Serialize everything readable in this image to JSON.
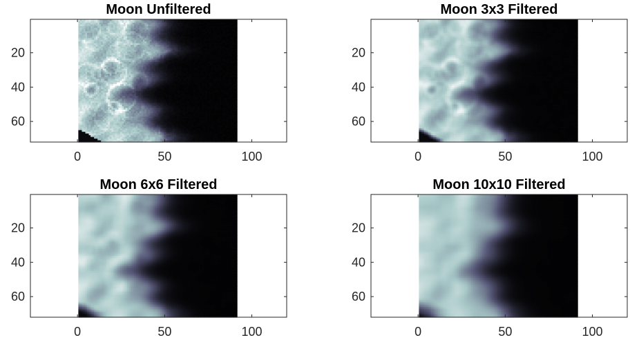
{
  "chart_data": [
    {
      "type": "heatmap",
      "title": "Moon Unfiltered",
      "filter_size": 1,
      "xlim": [
        -27,
        120
      ],
      "ylim": [
        72,
        0.5
      ],
      "xticks": [
        0,
        50,
        100
      ],
      "yticks": [
        20,
        40,
        60
      ],
      "image_x_range": [
        0.5,
        91.5
      ],
      "image_y_range": [
        0.5,
        72.5
      ],
      "colormap": "bone"
    },
    {
      "type": "heatmap",
      "title": "Moon 3x3 Filtered",
      "filter_size": 3,
      "xlim": [
        -27,
        120
      ],
      "ylim": [
        72,
        0.5
      ],
      "xticks": [
        0,
        50,
        100
      ],
      "yticks": [
        20,
        40,
        60
      ],
      "image_x_range": [
        0.5,
        91.5
      ],
      "image_y_range": [
        0.5,
        72.5
      ],
      "colormap": "bone"
    },
    {
      "type": "heatmap",
      "title": "Moon 6x6 Filtered",
      "filter_size": 6,
      "xlim": [
        -27,
        120
      ],
      "ylim": [
        72,
        0.5
      ],
      "xticks": [
        0,
        50,
        100
      ],
      "yticks": [
        20,
        40,
        60
      ],
      "image_x_range": [
        0.5,
        91.5
      ],
      "image_y_range": [
        0.5,
        72.5
      ],
      "colormap": "bone"
    },
    {
      "type": "heatmap",
      "title": "Moon 10x10 Filtered",
      "filter_size": 10,
      "xlim": [
        -27,
        120
      ],
      "ylim": [
        72,
        0.5
      ],
      "xticks": [
        0,
        50,
        100
      ],
      "yticks": [
        20,
        40,
        60
      ],
      "image_x_range": [
        0.5,
        91.5
      ],
      "image_y_range": [
        0.5,
        72.5
      ],
      "colormap": "bone"
    }
  ]
}
